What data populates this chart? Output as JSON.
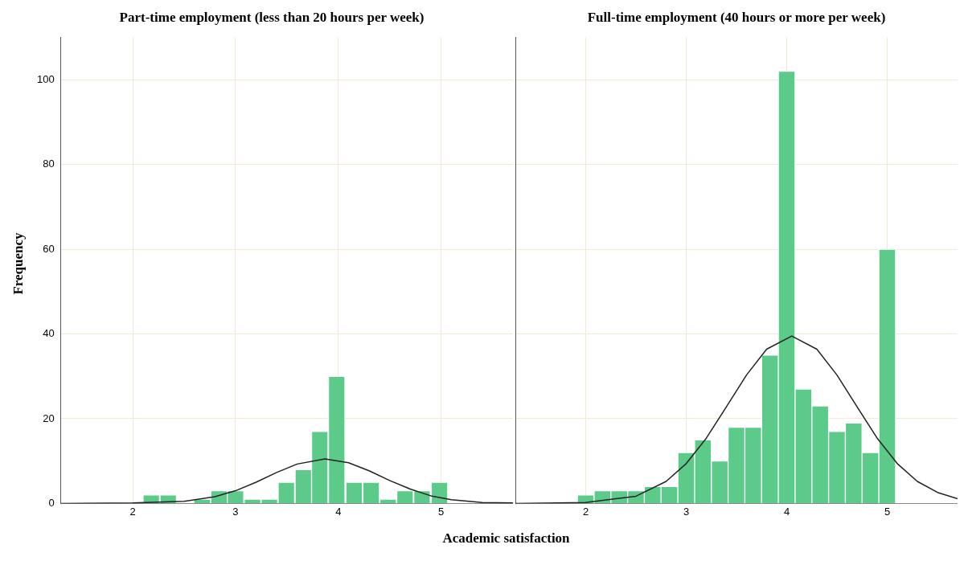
{
  "chart_data": [
    {
      "type": "histogram",
      "title": "Part-time employment (less than 20 hours per week)",
      "ylabel": "Frequency",
      "xlabel": "Academic satisfaction",
      "color": "#5ccb89",
      "bins": [
        2.1,
        2.26,
        2.43,
        2.59,
        2.76,
        2.92,
        3.08,
        3.25,
        3.41,
        3.58,
        3.74,
        3.9,
        4.07,
        4.24,
        4.4,
        4.57,
        4.73,
        4.9,
        5.07
      ],
      "values": [
        2,
        2,
        0,
        1,
        3,
        3,
        1,
        1,
        5,
        8,
        17,
        30,
        5,
        5,
        1,
        3,
        3,
        5
      ],
      "series": [
        {
          "type": "line",
          "color": "#222222",
          "x": [
            1.3,
            2.0,
            2.5,
            2.8,
            3.0,
            3.2,
            3.4,
            3.6,
            3.87,
            4.1,
            4.3,
            4.5,
            4.7,
            4.9,
            5.1,
            5.4,
            5.7
          ],
          "values": [
            0,
            0.1,
            0.5,
            1.6,
            3.0,
            5.0,
            7.3,
            9.3,
            10.5,
            9.6,
            7.7,
            5.4,
            3.4,
            1.8,
            0.9,
            0.2,
            0.1
          ]
        }
      ],
      "xlim": [
        1.3,
        5.7
      ],
      "xticks": [
        2,
        3,
        4,
        5
      ],
      "ylim": [
        0,
        110
      ],
      "yticks": [
        0,
        20,
        40,
        60,
        80,
        100
      ],
      "grid": true
    },
    {
      "type": "histogram",
      "title": "Full-time employment (40 hours or more per week)",
      "color": "#5ccb89",
      "bins": [
        1.917,
        2.083,
        2.25,
        2.417,
        2.583,
        2.75,
        2.917,
        3.083,
        3.25,
        3.417,
        3.583,
        3.75,
        3.917,
        4.083,
        4.25,
        4.417,
        4.583,
        4.75,
        4.917,
        5.083
      ],
      "values": [
        2,
        3,
        3,
        3,
        4,
        4,
        12,
        15,
        10,
        18,
        18,
        35,
        102,
        27,
        23,
        17,
        19,
        12,
        60
      ],
      "series": [
        {
          "type": "line",
          "color": "#222222",
          "x": [
            1.3,
            2.0,
            2.5,
            2.8,
            3.0,
            3.2,
            3.4,
            3.6,
            3.8,
            4.05,
            4.3,
            4.5,
            4.7,
            4.9,
            5.1,
            5.3,
            5.5,
            5.7
          ],
          "values": [
            0,
            0.2,
            1.7,
            5.2,
            9.4,
            15.4,
            22.8,
            30.3,
            36.4,
            39.5,
            36.4,
            30.3,
            22.8,
            15.4,
            9.4,
            5.2,
            2.6,
            1.1
          ]
        }
      ],
      "xlim": [
        1.3,
        5.7
      ],
      "xticks": [
        2,
        3,
        4,
        5
      ],
      "ylim": [
        0,
        110
      ],
      "yticks": [
        0,
        20,
        40,
        60,
        80,
        100
      ],
      "grid": true,
      "tick_labels": "x"
    }
  ]
}
